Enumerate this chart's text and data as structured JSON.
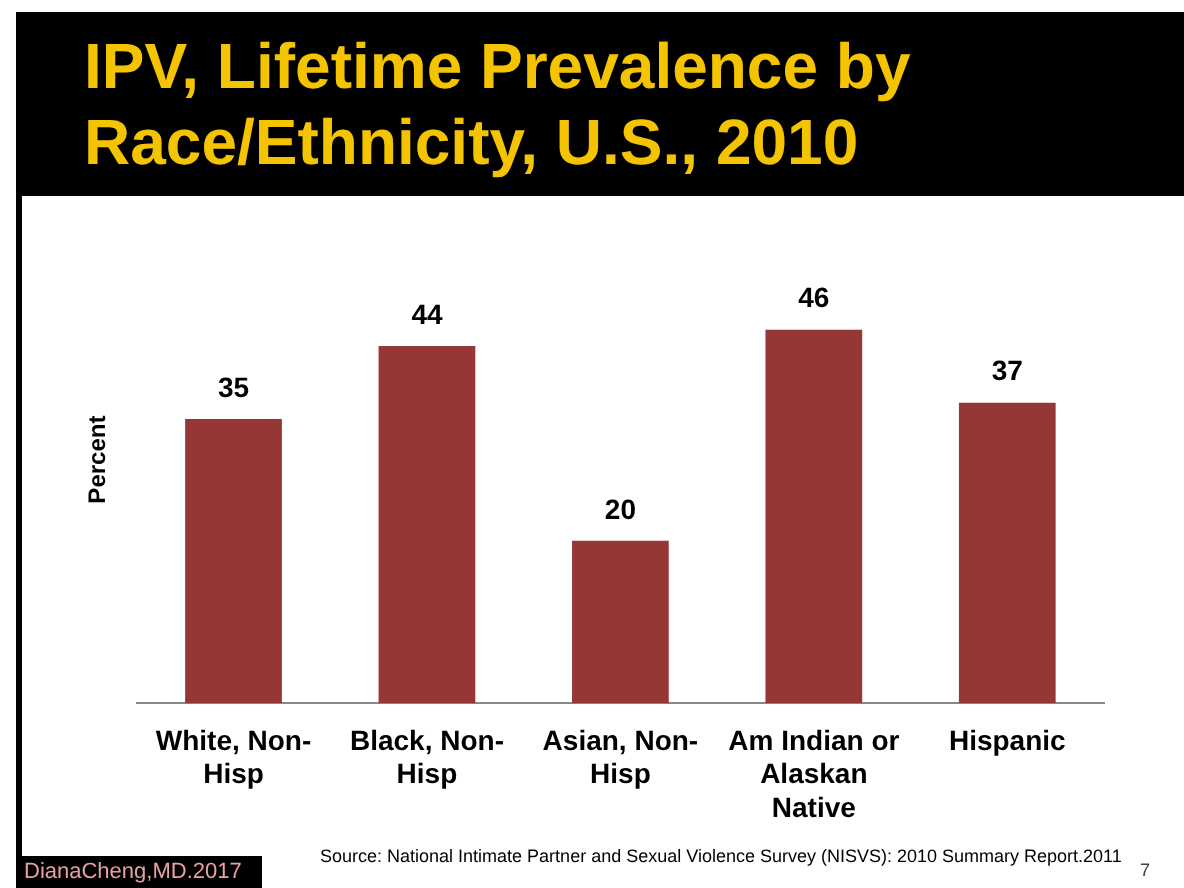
{
  "chart_data": {
    "type": "bar",
    "title": "IPV, Lifetime Prevalence by Race/Ethnicity, U.S., 2010",
    "ylabel": "Percent",
    "categories": [
      "White, Non-Hisp",
      "Black, Non-Hisp",
      "Asian, Non-Hisp",
      "Am Indian or Alaskan Native",
      "Hispanic"
    ],
    "values": [
      35,
      44,
      20,
      46,
      37
    ],
    "color": "#953735",
    "data_labels": true,
    "grid": false,
    "legend": false,
    "annotations": [
      "Source: National Intimate Partner and Sexual Violence Survey (NISVS): 2010 Summary Report.2011",
      "DianaCheng,MD.2017",
      "7"
    ]
  }
}
